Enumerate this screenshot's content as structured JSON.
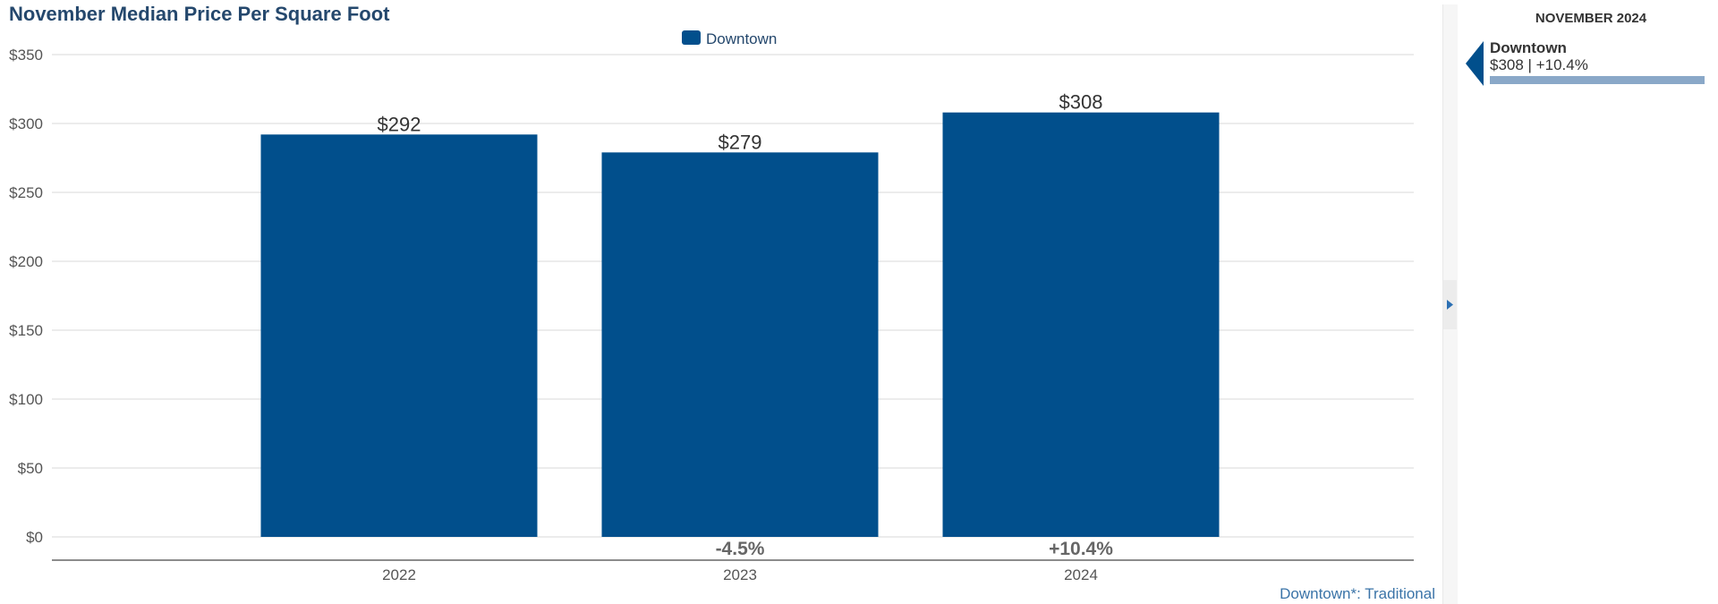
{
  "colors": {
    "bar": "#014f8c",
    "title": "#25486d",
    "panel_bar": "#8aa8c8",
    "grid": "#d9d9d9"
  },
  "chart_data": {
    "type": "bar",
    "title": "November Median Price Per Square Foot",
    "xlabel": "",
    "ylabel": "",
    "categories": [
      "2022",
      "2023",
      "2024"
    ],
    "series": [
      {
        "name": "Downtown",
        "values": [
          292,
          279,
          308
        ]
      }
    ],
    "value_labels": [
      "$292",
      "$279",
      "$308"
    ],
    "change_labels": [
      "",
      "-4.5%",
      "+10.4%"
    ],
    "ylim": [
      0,
      350
    ],
    "yticks": [
      0,
      50,
      100,
      150,
      200,
      250,
      300,
      350
    ],
    "ytick_labels": [
      "$0",
      "$50",
      "$100",
      "$150",
      "$200",
      "$250",
      "$300",
      "$350"
    ],
    "grid": true,
    "legend_position": "top-center"
  },
  "footnote": "Downtown*: Traditional",
  "side_panel": {
    "title": "NOVEMBER 2024",
    "series_name": "Downtown",
    "value_text": "$308 | +10.4%",
    "bar_fraction": 1.0,
    "expand_icon": "triangle-right-icon",
    "marker_icon": "triangle-left-icon"
  }
}
